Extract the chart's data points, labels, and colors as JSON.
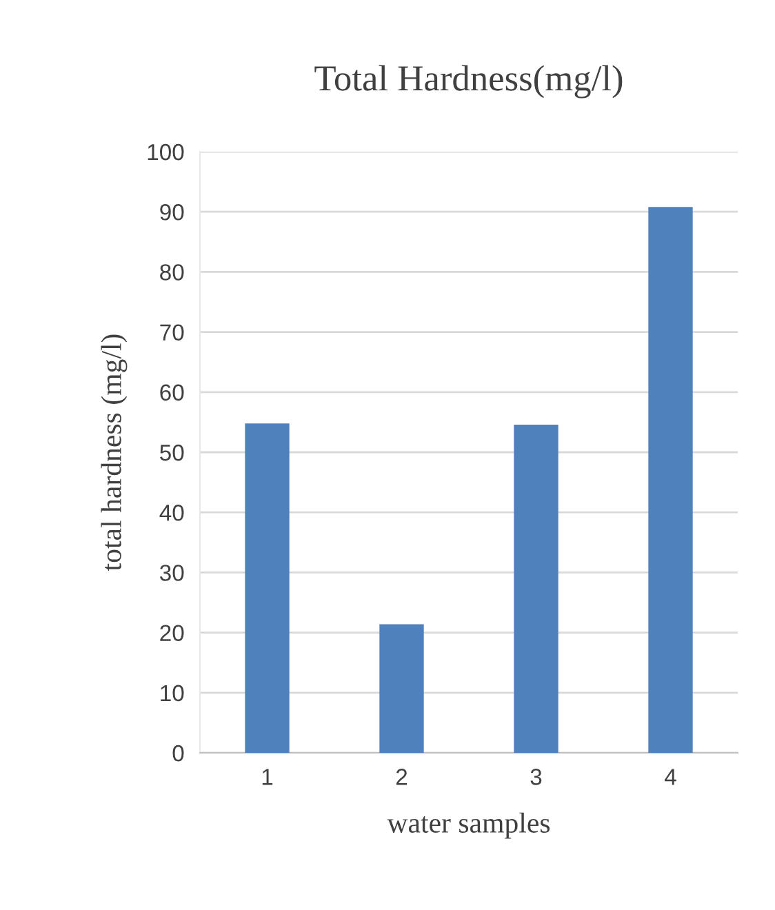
{
  "chart_data": {
    "type": "bar",
    "title": "Total Hardness(mg/l)",
    "xlabel": "water samples",
    "ylabel": "total hardness (mg/l)",
    "categories": [
      "1",
      "2",
      "3",
      "4"
    ],
    "values": [
      54.8,
      21.4,
      54.6,
      90.8
    ],
    "color": "#4f81bd",
    "ylim": [
      0,
      100
    ],
    "yticks": [
      0,
      10,
      20,
      30,
      40,
      50,
      60,
      70,
      80,
      90,
      100
    ],
    "grid": "y",
    "legend": false
  }
}
